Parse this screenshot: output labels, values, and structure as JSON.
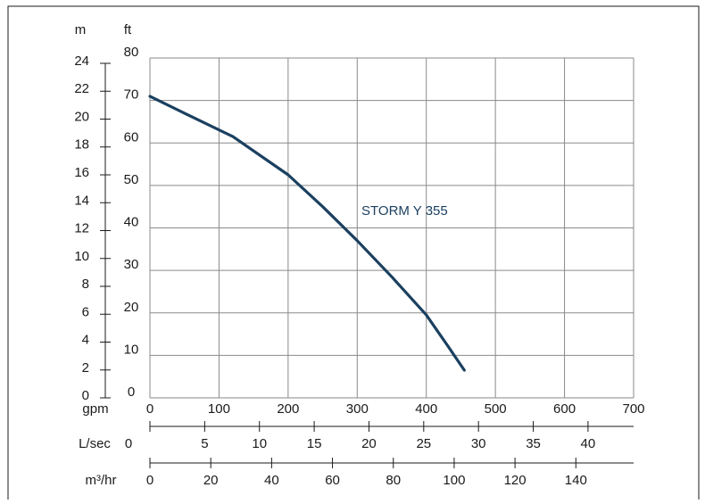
{
  "chart_data": {
    "type": "line",
    "grid": true,
    "xlabel": "gpm",
    "xlim": [
      0,
      700
    ],
    "x_ticks": [
      "0",
      "100",
      "200",
      "300",
      "400",
      "500",
      "600",
      "700"
    ],
    "ylabel_left": "m",
    "ylabel_right": "ft",
    "ylim_ft": [
      0,
      80
    ],
    "y_ticks_m": [
      "0",
      "2",
      "4",
      "6",
      "8",
      "10",
      "12",
      "14",
      "16",
      "18",
      "20",
      "22",
      "24"
    ],
    "y_ticks_ft": [
      "0",
      "10",
      "20",
      "30",
      "40",
      "50",
      "60",
      "70",
      "80"
    ],
    "secondary_axes": [
      {
        "label": "L/sec",
        "unit_to_gpm": 15.85,
        "first_tick": "0",
        "ticks": [
          "5",
          "10",
          "15",
          "20",
          "25",
          "30",
          "35",
          "40"
        ]
      },
      {
        "label": "m³/hr",
        "unit_to_gpm": 4.403,
        "first_tick": "0",
        "ticks": [
          "20",
          "40",
          "60",
          "80",
          "100",
          "120",
          "140"
        ]
      }
    ],
    "series": [
      {
        "name": "STORM Y 355",
        "color": "#1b4060",
        "x": [
          0,
          50,
          120,
          200,
          250,
          300,
          350,
          400,
          430,
          455
        ],
        "y": [
          71,
          67,
          61.5,
          52.5,
          45,
          37,
          28.5,
          19.5,
          12.5,
          6.5
        ]
      }
    ]
  }
}
